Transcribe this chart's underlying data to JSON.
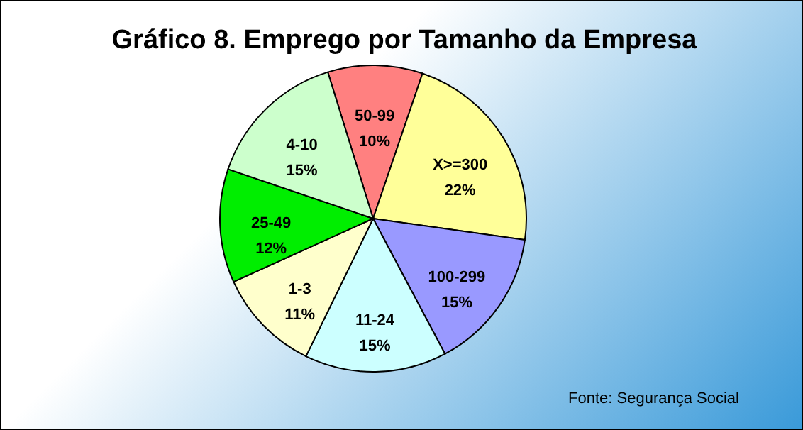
{
  "chart_data": {
    "type": "pie",
    "title": "Gráfico 8. Emprego por Tamanho da Empresa",
    "categories": [
      "50-99",
      "X>=300",
      "100-299",
      "11-24",
      "1-3",
      "25-49",
      "4-10"
    ],
    "values": [
      10,
      22,
      15,
      15,
      11,
      12,
      15
    ],
    "value_labels": [
      "10%",
      "22%",
      "15%",
      "15%",
      "11%",
      "12%",
      "15%"
    ],
    "colors": [
      "#ff8080",
      "#ffff99",
      "#9999ff",
      "#ccffff",
      "#ffffcc",
      "#00ee00",
      "#ccffcc"
    ],
    "annotations": [
      "Fonte: Segurança Social"
    ],
    "legend": false
  }
}
